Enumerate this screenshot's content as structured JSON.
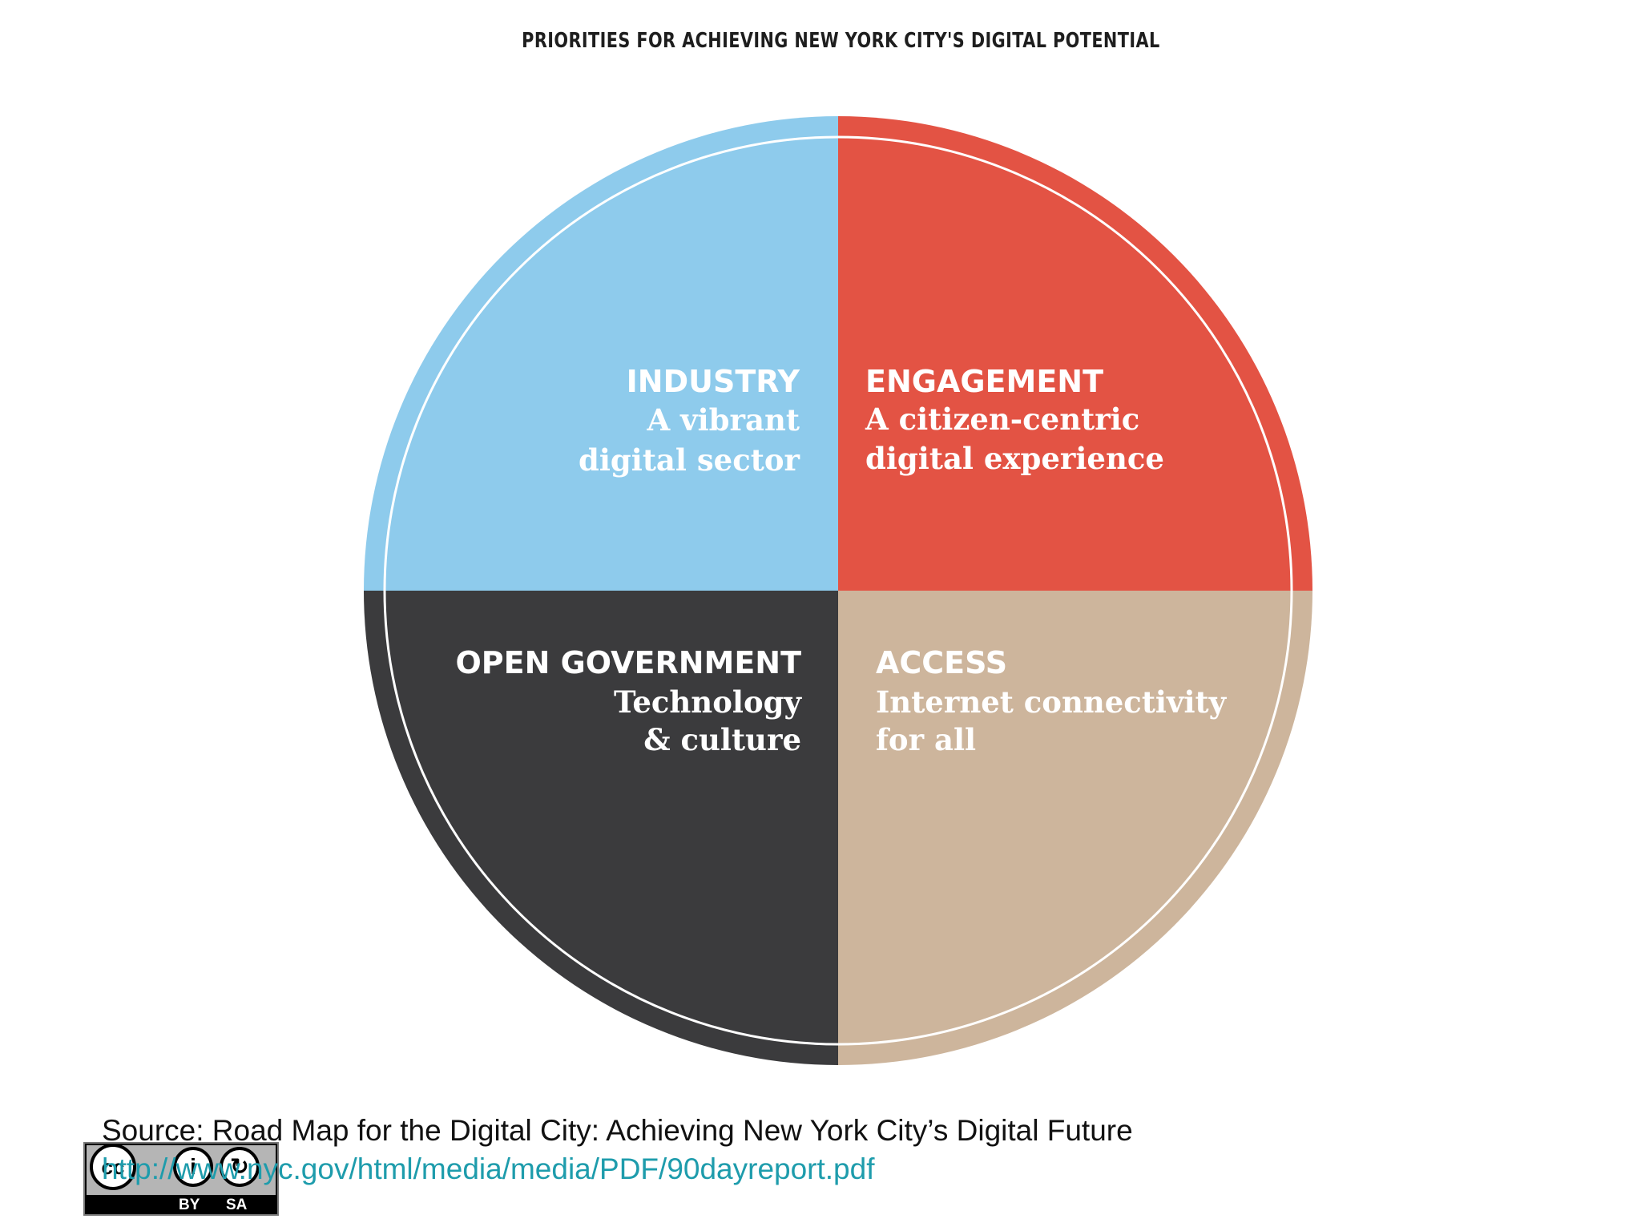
{
  "diagram": {
    "title": "PRIORITIES FOR ACHIEVING NEW YORK CITY'S DIGITAL POTENTIAL",
    "quadrants": [
      {
        "id": "industry",
        "title": "INDUSTRY",
        "lines": [
          "A vibrant",
          "digital sector"
        ],
        "color": "#8ecbec"
      },
      {
        "id": "engagement",
        "title": "ENGAGEMENT",
        "lines": [
          "A citizen-centric",
          "digital experience"
        ],
        "color": "#e35344"
      },
      {
        "id": "open-government",
        "title": "OPEN GOVERNMENT",
        "lines": [
          "Technology",
          "& culture"
        ],
        "color": "#3b3b3d"
      },
      {
        "id": "access",
        "title": "ACCESS",
        "lines": [
          "Internet connectivity",
          "for all"
        ],
        "color": "#cdb59c"
      }
    ]
  },
  "source": {
    "text": "Source: Road Map for the Digital City: Achieving New York City’s Digital Future",
    "url": "http://www.nyc.gov/html/media/media/PDF/90dayreport.pdf"
  },
  "license": {
    "cc_glyph": "cc",
    "by_glyph": "i",
    "sa_glyph": "↻",
    "by": "BY",
    "sa": "SA"
  }
}
